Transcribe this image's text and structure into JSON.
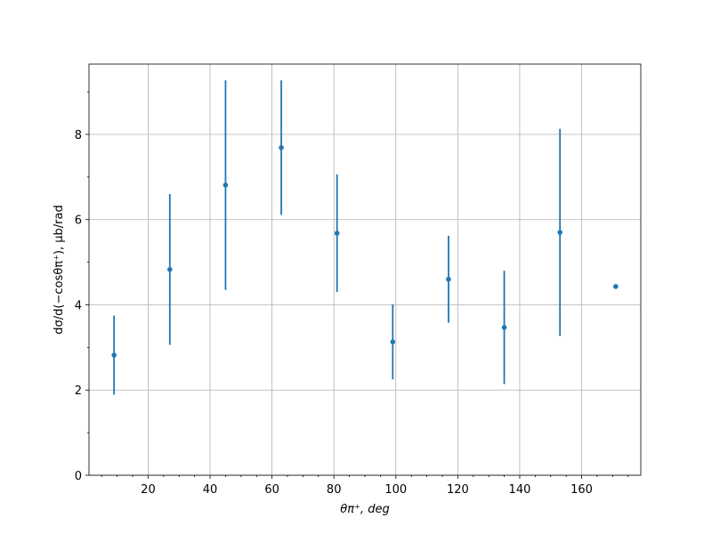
{
  "chart_data": {
    "type": "errorbar",
    "xlabel": "θπ⁺, deg",
    "ylabel": "dσ/d(−cosθπ⁺), μb/rad",
    "x": [
      9,
      27,
      45,
      63,
      81,
      99,
      117,
      135,
      153,
      171
    ],
    "series": [
      {
        "color": "#1f77b4",
        "values": [
          2.82,
          4.83,
          6.81,
          7.69,
          5.68,
          3.13,
          4.6,
          3.47,
          5.7,
          4.43
        ],
        "errors": [
          0.93,
          1.77,
          2.46,
          1.58,
          1.38,
          0.88,
          1.02,
          1.33,
          2.43,
          0
        ]
      }
    ],
    "xlim": [
      0.9,
      179.1
    ],
    "ylim": [
      0,
      9.65
    ],
    "xticks": [
      20,
      40,
      60,
      80,
      100,
      120,
      140,
      160
    ],
    "yticks": [
      0,
      2,
      4,
      6,
      8
    ],
    "xminorticks": [
      5,
      10,
      15,
      25,
      30,
      35,
      45,
      50,
      55,
      65,
      70,
      75,
      85,
      90,
      95,
      105,
      110,
      115,
      125,
      130,
      135,
      145,
      150,
      155,
      165,
      170,
      175
    ],
    "yminorticks": [
      1,
      3,
      5,
      7,
      9
    ],
    "grid": true
  }
}
